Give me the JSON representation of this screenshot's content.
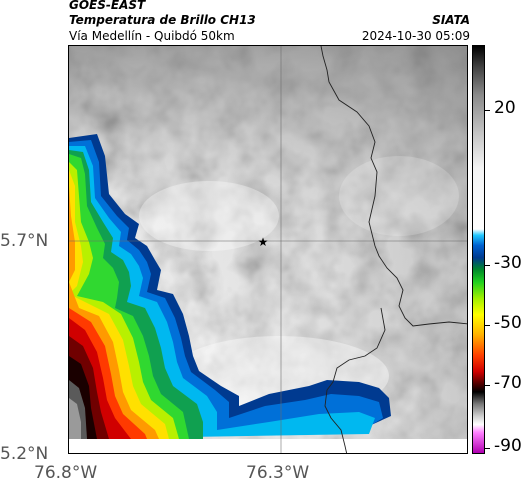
{
  "header": {
    "satellite": "GOES-EAST",
    "product": "Temperatura de Brillo CH13",
    "route": "Vía Medellín - Quibdó 50km",
    "source": "SIATA",
    "datetime": "2024-10-30 05:09"
  },
  "map": {
    "lat_ticks": [
      "5.7°N",
      "5.2°N"
    ],
    "lon_ticks": [
      "76.8°W",
      "76.3°W"
    ],
    "marker": "star-icon"
  },
  "colorbar": {
    "labels": [
      "20",
      "-30",
      "-50",
      "-70",
      "-90"
    ],
    "colors": {
      "warm_gray": "#9a9a9a",
      "cold_cyan": "#20c8ff",
      "cold_blue": "#003a90",
      "green": "#20d020",
      "yellow": "#ffff00",
      "orange": "#ff8000",
      "red": "#d00000",
      "magenta": "#b000b0"
    }
  }
}
